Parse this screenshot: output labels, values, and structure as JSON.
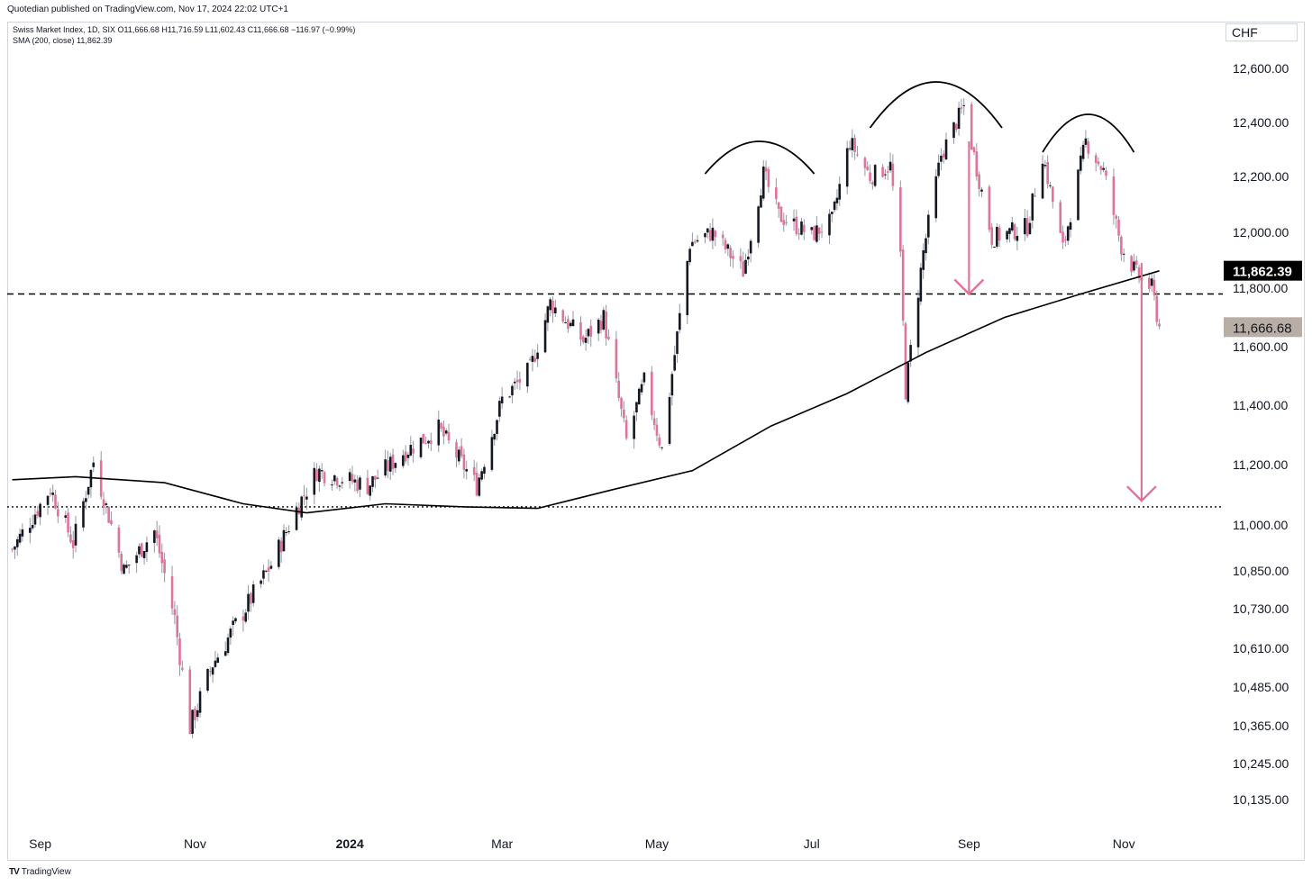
{
  "header": {
    "publisher": "Quotedian published on TradingView.com, Nov 17, 2024 22:02 UTC+1",
    "legend_line1": "Swiss Market Index, 1D, SIX  O11,666.68  H11,716.59  L11,602.43  C11,666.68  −116.97 (−0.99%)",
    "legend_line2": "SMA (200, close)  11,862.39",
    "currency": "CHF"
  },
  "footer": {
    "brand": "TradingView",
    "logo": "TV"
  },
  "chart_data": {
    "type": "candlestick",
    "instrument": "Swiss Market Index, 1D, SIX",
    "ohlc": {
      "open": 11666.68,
      "high": 11716.59,
      "low": 11602.43,
      "close": 11666.68,
      "change": -116.97,
      "change_pct": -0.99
    },
    "sma_label": "SMA (200, close)",
    "sma_last": 11862.39,
    "last_price_label": "11,666.68",
    "sma_price_label": "11,862.39",
    "y_ticks": [
      12600,
      12400,
      12200,
      12000,
      11800,
      11600,
      11400,
      11200,
      11000,
      10850,
      10730,
      10610,
      10485,
      10365,
      10245,
      10135
    ],
    "y_tick_labels": [
      "12,600.00",
      "12,400.00",
      "12,200.00",
      "12,000.00",
      "11,800.00",
      "11,600.00",
      "11,400.00",
      "11,200.00",
      "11,000.00",
      "10,850.00",
      "10,730.00",
      "10,610.00",
      "10,485.00",
      "10,365.00",
      "10,245.00",
      "10,135.00"
    ],
    "x_labels": [
      {
        "label": "Sep",
        "date": "2023-09-01"
      },
      {
        "label": "Nov",
        "date": "2023-11-01"
      },
      {
        "label": "2024",
        "date": "2024-01-01",
        "bold": true
      },
      {
        "label": "Mar",
        "date": "2024-03-01"
      },
      {
        "label": "May",
        "date": "2024-05-01"
      },
      {
        "label": "Jul",
        "date": "2024-07-01"
      },
      {
        "label": "Sep",
        "date": "2024-09-01"
      },
      {
        "label": "Nov",
        "date": "2024-11-01"
      }
    ],
    "x_range": [
      "2023-08-19",
      "2024-12-10"
    ],
    "neckline": 11780,
    "support_line": 11060,
    "path": [
      [
        "2023-08-21",
        10920
      ],
      [
        "2023-09-05",
        11120
      ],
      [
        "2023-09-14",
        10940
      ],
      [
        "2023-09-22",
        11210
      ],
      [
        "2023-10-04",
        10850
      ],
      [
        "2023-10-16",
        10980
      ],
      [
        "2023-10-24",
        10700
      ],
      [
        "2023-10-30",
        10360
      ],
      [
        "2023-11-08",
        10560
      ],
      [
        "2023-11-20",
        10720
      ],
      [
        "2023-12-01",
        10870
      ],
      [
        "2023-12-12",
        11070
      ],
      [
        "2023-12-19",
        11180
      ],
      [
        "2024-01-08",
        11130
      ],
      [
        "2024-01-22",
        11240
      ],
      [
        "2024-02-05",
        11320
      ],
      [
        "2024-02-20",
        11130
      ],
      [
        "2024-03-01",
        11420
      ],
      [
        "2024-03-12",
        11520
      ],
      [
        "2024-03-20",
        11750
      ],
      [
        "2024-04-02",
        11620
      ],
      [
        "2024-04-10",
        11700
      ],
      [
        "2024-04-19",
        11280
      ],
      [
        "2024-04-26",
        11480
      ],
      [
        "2024-05-03",
        11250
      ],
      [
        "2024-05-14",
        11960
      ],
      [
        "2024-05-23",
        12000
      ],
      [
        "2024-06-04",
        11860
      ],
      [
        "2024-06-12",
        12210
      ],
      [
        "2024-06-18",
        12060
      ],
      [
        "2024-07-01",
        11990
      ],
      [
        "2024-07-09",
        12040
      ],
      [
        "2024-07-16",
        12330
      ],
      [
        "2024-07-24",
        12200
      ],
      [
        "2024-08-01",
        12240
      ],
      [
        "2024-08-05",
        11900
      ],
      [
        "2024-08-07",
        11450
      ],
      [
        "2024-08-14",
        11930
      ],
      [
        "2024-08-21",
        12280
      ],
      [
        "2024-08-30",
        12460
      ],
      [
        "2024-09-04",
        12230
      ],
      [
        "2024-09-10",
        11980
      ],
      [
        "2024-09-24",
        12020
      ],
      [
        "2024-09-30",
        12280
      ],
      [
        "2024-10-08",
        11940
      ],
      [
        "2024-10-17",
        12330
      ],
      [
        "2024-10-24",
        12220
      ],
      [
        "2024-10-31",
        11950
      ],
      [
        "2024-11-06",
        11850
      ],
      [
        "2024-11-12",
        11800
      ],
      [
        "2024-11-15",
        11667
      ]
    ],
    "sma_path": [
      [
        "2023-08-21",
        11150
      ],
      [
        "2023-09-15",
        11160
      ],
      [
        "2023-10-20",
        11140
      ],
      [
        "2023-11-20",
        11070
      ],
      [
        "2023-12-15",
        11040
      ],
      [
        "2024-01-15",
        11070
      ],
      [
        "2024-02-15",
        11060
      ],
      [
        "2024-03-15",
        11055
      ],
      [
        "2024-04-15",
        11120
      ],
      [
        "2024-05-15",
        11180
      ],
      [
        "2024-06-15",
        11330
      ],
      [
        "2024-07-15",
        11440
      ],
      [
        "2024-08-15",
        11580
      ],
      [
        "2024-09-15",
        11700
      ],
      [
        "2024-10-15",
        11780
      ],
      [
        "2024-11-15",
        11862
      ]
    ],
    "arcs": [
      {
        "start": "2024-05-20",
        "end": "2024-07-02",
        "peak": 12330,
        "base": 12210
      },
      {
        "start": "2024-07-24",
        "end": "2024-09-14",
        "peak": 12550,
        "base": 12380
      },
      {
        "start": "2024-09-30",
        "end": "2024-11-05",
        "peak": 12430,
        "base": 12290
      }
    ],
    "arrows": [
      {
        "date": "2024-09-01",
        "from": 12330,
        "to": 11780
      },
      {
        "date": "2024-11-08",
        "from": 11890,
        "to": 11080
      }
    ],
    "colors": {
      "up": "#131722",
      "down": "#e0739a",
      "wick": "#9598a1",
      "arrow": "#e0739a",
      "sma": "#000000",
      "price_tag": "#b9aea5"
    }
  }
}
